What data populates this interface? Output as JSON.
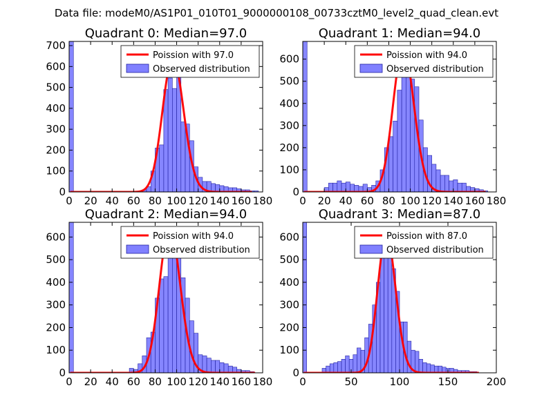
{
  "figure": {
    "suptitle": "Data file: modeM0/AS1P01_010T01_9000000108_00733cztM0_level2_quad_clean.evt"
  },
  "colors": {
    "bar_fill": "#8080ff",
    "bar_edge": "#2020a0",
    "poisson_line": "#ff0000",
    "background": "#ffffff"
  },
  "chart_data": [
    {
      "type": "bar",
      "title": "Quadrant 0: Median=97.0",
      "xlim": [
        0,
        180
      ],
      "ylim": [
        0,
        720
      ],
      "xticks": [
        0,
        20,
        40,
        60,
        80,
        100,
        120,
        140,
        160,
        180
      ],
      "yticks": [
        0,
        100,
        200,
        300,
        400,
        500,
        600,
        700
      ],
      "legend": [
        "Poission with 97.0",
        "Observed distribution"
      ],
      "legend_position": "top-right",
      "histogram": {
        "bin_width": 4,
        "bin_starts": [
          0,
          68,
          72,
          76,
          80,
          84,
          88,
          92,
          96,
          100,
          104,
          108,
          112,
          116,
          120,
          124,
          128,
          132,
          136,
          140,
          144,
          148,
          152,
          156,
          160,
          164,
          168,
          172
        ],
        "counts": [
          720,
          10,
          25,
          100,
          210,
          225,
          490,
          545,
          495,
          575,
          335,
          325,
          245,
          120,
          70,
          50,
          50,
          40,
          35,
          30,
          25,
          20,
          20,
          15,
          10,
          10,
          5,
          5
        ]
      },
      "poisson": {
        "mean": 97.0,
        "scale": 640,
        "x_range": [
          1,
          170
        ]
      }
    },
    {
      "type": "bar",
      "title": "Quadrant 1: Median=94.0",
      "xlim": [
        0,
        180
      ],
      "ylim": [
        0,
        680
      ],
      "xticks": [
        0,
        20,
        40,
        60,
        80,
        100,
        120,
        140,
        160,
        180
      ],
      "yticks": [
        0,
        100,
        200,
        300,
        400,
        500,
        600
      ],
      "legend": [
        "Poission with 94.0",
        "Observed distribution"
      ],
      "legend_position": "top-right",
      "histogram": {
        "bin_width": 4,
        "bin_starts": [
          0,
          20,
          24,
          28,
          32,
          36,
          40,
          44,
          48,
          52,
          56,
          60,
          64,
          68,
          72,
          76,
          80,
          84,
          88,
          92,
          96,
          100,
          104,
          108,
          112,
          116,
          120,
          124,
          128,
          132,
          136,
          140,
          144,
          148,
          152,
          156,
          160,
          164,
          168
        ],
        "counts": [
          680,
          20,
          40,
          40,
          50,
          40,
          45,
          35,
          30,
          25,
          35,
          20,
          30,
          50,
          100,
          200,
          250,
          320,
          460,
          570,
          600,
          510,
          475,
          325,
          200,
          165,
          125,
          100,
          75,
          75,
          50,
          55,
          40,
          40,
          25,
          20,
          15,
          10,
          5
        ]
      },
      "poisson": {
        "mean": 94.0,
        "scale": 650,
        "x_range": [
          1,
          170
        ]
      }
    },
    {
      "type": "bar",
      "title": "Quadrant 2: Median=94.0",
      "xlim": [
        0,
        180
      ],
      "ylim": [
        0,
        665
      ],
      "xticks": [
        0,
        20,
        40,
        60,
        80,
        100,
        120,
        140,
        160,
        180
      ],
      "yticks": [
        0,
        100,
        200,
        300,
        400,
        500,
        600
      ],
      "legend": [
        "Poission with 94.0",
        "Observed distribution"
      ],
      "legend_position": "top-right",
      "histogram": {
        "bin_width": 4,
        "bin_starts": [
          0,
          56,
          60,
          64,
          68,
          72,
          76,
          80,
          84,
          88,
          92,
          96,
          100,
          104,
          108,
          112,
          116,
          120,
          124,
          128,
          132,
          136,
          140,
          144,
          148,
          152,
          156,
          160,
          164,
          168
        ],
        "counts": [
          665,
          20,
          15,
          40,
          75,
          155,
          180,
          330,
          415,
          425,
          610,
          615,
          530,
          420,
          330,
          230,
          175,
          80,
          75,
          65,
          55,
          55,
          45,
          40,
          30,
          25,
          15,
          10,
          10,
          5
        ]
      },
      "poisson": {
        "mean": 94.0,
        "scale": 640,
        "x_range": [
          1,
          173
        ]
      }
    },
    {
      "type": "bar",
      "title": "Quadrant 3: Median=87.0",
      "xlim": [
        0,
        200
      ],
      "ylim": [
        0,
        665
      ],
      "xticks": [
        0,
        50,
        100,
        150,
        200
      ],
      "yticks": [
        0,
        100,
        200,
        300,
        400,
        500,
        600
      ],
      "legend": [
        "Poission with 87.0",
        "Observed distribution"
      ],
      "legend_position": "top-right",
      "histogram": {
        "bin_width": 4,
        "bin_starts": [
          0,
          20,
          24,
          28,
          32,
          36,
          40,
          44,
          48,
          52,
          56,
          60,
          64,
          68,
          72,
          76,
          80,
          84,
          88,
          92,
          96,
          100,
          104,
          108,
          112,
          116,
          120,
          124,
          128,
          132,
          136,
          140,
          144,
          148,
          152,
          156,
          160,
          164,
          168,
          172,
          176
        ],
        "counts": [
          665,
          20,
          30,
          40,
          45,
          50,
          60,
          75,
          60,
          80,
          110,
          100,
          155,
          215,
          300,
          400,
          545,
          580,
          630,
          460,
          360,
          225,
          225,
          140,
          100,
          95,
          60,
          45,
          40,
          35,
          30,
          30,
          25,
          20,
          20,
          15,
          10,
          10,
          10,
          5,
          5
        ]
      },
      "poisson": {
        "mean": 87.0,
        "scale": 610,
        "x_range": [
          1,
          182
        ]
      }
    }
  ]
}
